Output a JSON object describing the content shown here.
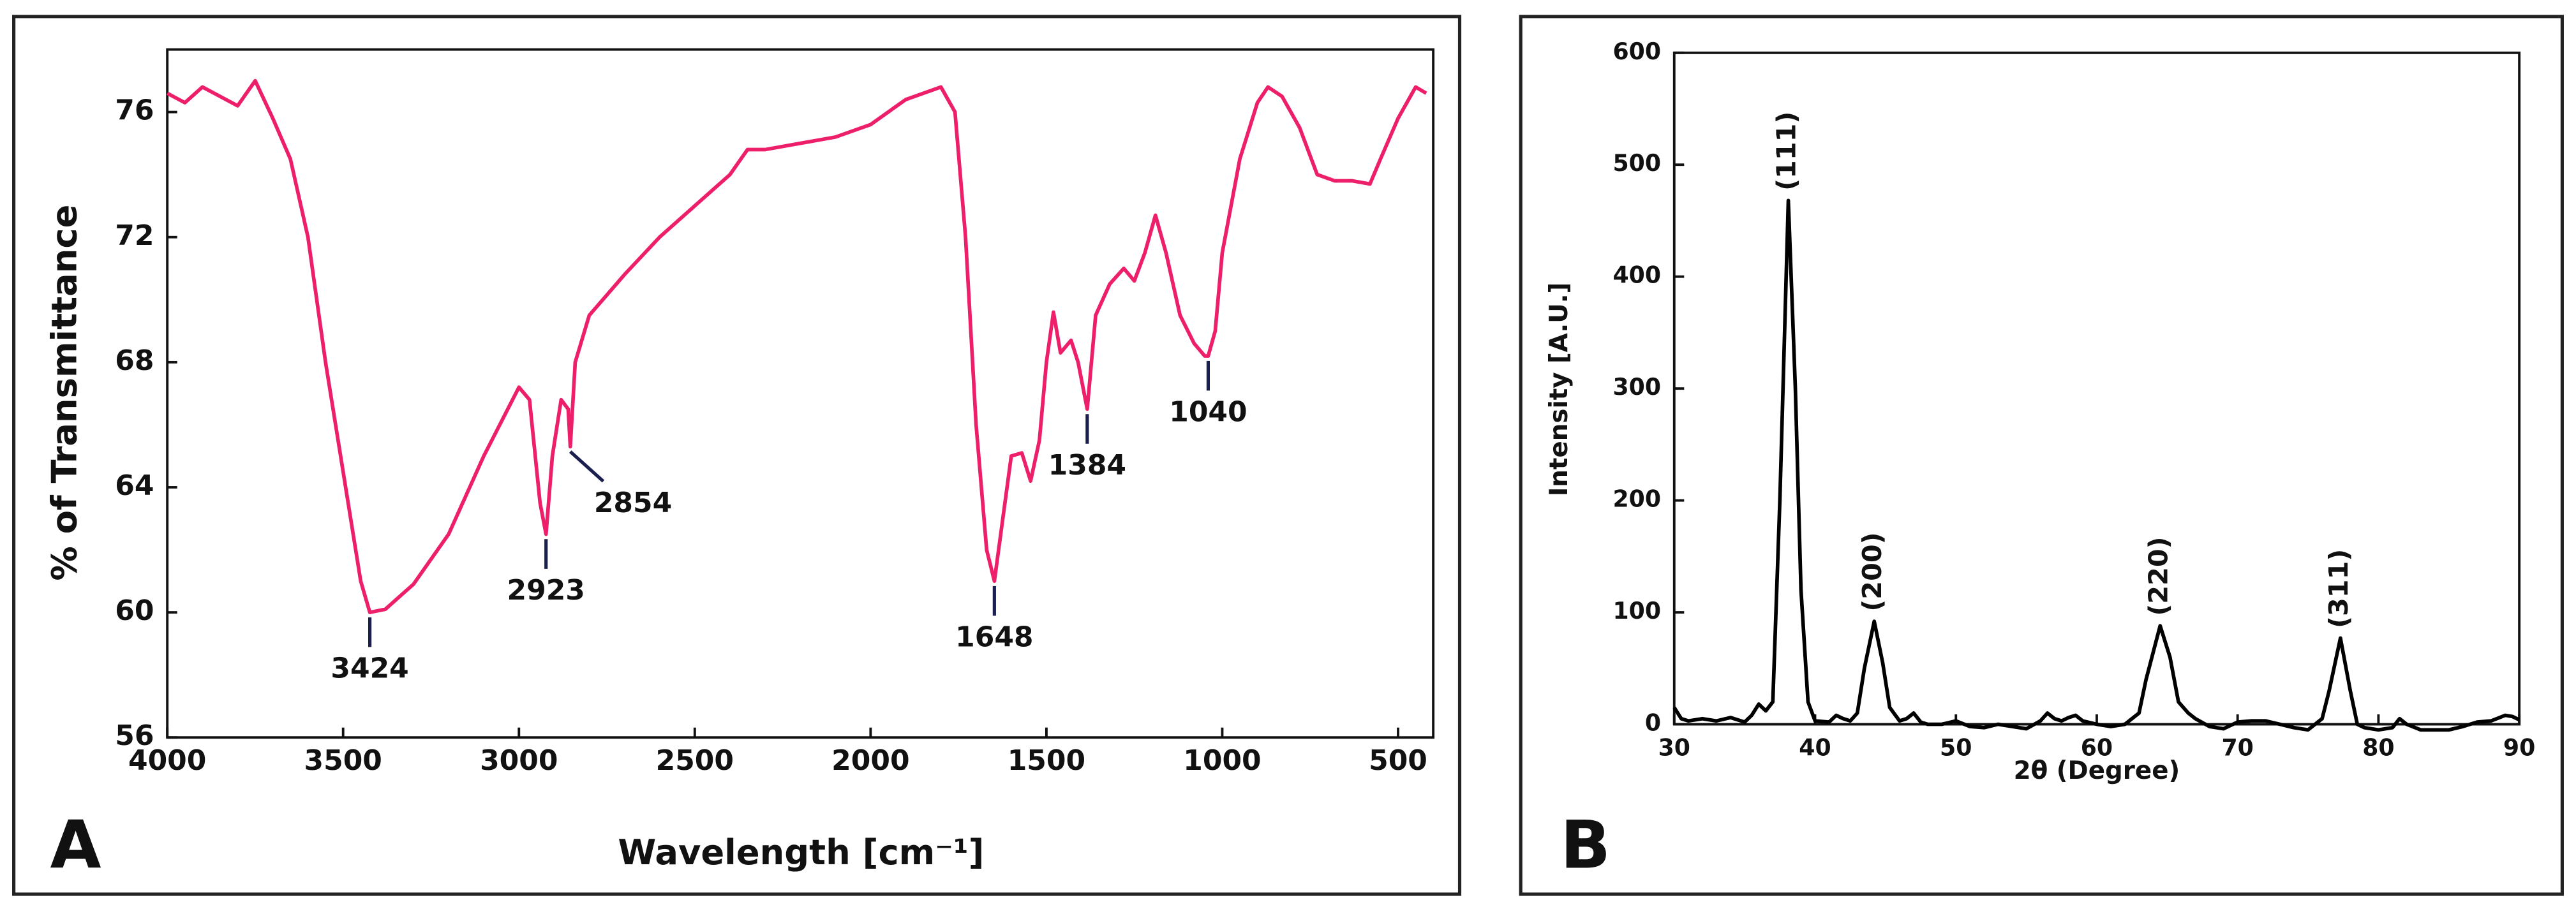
{
  "chart_data": [
    {
      "type": "line",
      "panel": "A",
      "x_label": "Wavelength [cm⁻¹]",
      "y_label": "% of Transmittance",
      "color": "#ee1f6a",
      "xlim": [
        4000,
        400
      ],
      "ylim": [
        56,
        78
      ],
      "xticks": [
        4000,
        3500,
        3000,
        2500,
        2000,
        1500,
        1000,
        500
      ],
      "yticks": [
        56,
        60,
        64,
        68,
        72,
        76
      ],
      "x": [
        4000,
        3950,
        3900,
        3850,
        3800,
        3750,
        3700,
        3650,
        3600,
        3550,
        3500,
        3450,
        3424,
        3380,
        3300,
        3200,
        3100,
        3000,
        2970,
        2940,
        2923,
        2905,
        2880,
        2860,
        2854,
        2840,
        2800,
        2700,
        2600,
        2500,
        2400,
        2350,
        2300,
        2200,
        2100,
        2000,
        1900,
        1800,
        1760,
        1730,
        1700,
        1670,
        1648,
        1630,
        1600,
        1570,
        1545,
        1520,
        1500,
        1480,
        1460,
        1430,
        1410,
        1384,
        1360,
        1320,
        1280,
        1250,
        1220,
        1190,
        1160,
        1120,
        1080,
        1050,
        1040,
        1020,
        1000,
        950,
        900,
        870,
        830,
        780,
        730,
        680,
        630,
        580,
        550,
        500,
        450,
        420
      ],
      "values": [
        76.6,
        76.3,
        76.8,
        76.5,
        76.2,
        77,
        75.8,
        74.5,
        72,
        68,
        64.5,
        61,
        60,
        60.1,
        60.9,
        62.5,
        65,
        67.2,
        66.8,
        63.5,
        62.5,
        65,
        66.8,
        66.5,
        65.3,
        68,
        69.5,
        70.8,
        72,
        73,
        74,
        74.8,
        74.8,
        75,
        75.2,
        75.6,
        76.4,
        76.8,
        76,
        72,
        66,
        62,
        61,
        62.5,
        65,
        65.1,
        64.2,
        65.5,
        68,
        69.6,
        68.3,
        68.7,
        68,
        66.5,
        69.5,
        70.5,
        71,
        70.6,
        71.5,
        72.7,
        71.5,
        69.5,
        68.6,
        68.2,
        68.2,
        69,
        71.5,
        74.5,
        76.3,
        76.8,
        76.5,
        75.5,
        74,
        73.8,
        73.8,
        73.7,
        74.5,
        75.8,
        76.8,
        76.6
      ],
      "peaks": [
        3424,
        2923,
        2854,
        1648,
        1384,
        1040
      ]
    },
    {
      "type": "line",
      "panel": "B",
      "x_label": "2θ (Degree)",
      "y_label": "Intensity [A.U.]",
      "color": "#000000",
      "xlim": [
        30,
        90
      ],
      "ylim": [
        0,
        600
      ],
      "xticks": [
        30,
        40,
        50,
        60,
        70,
        80,
        90
      ],
      "yticks": [
        0,
        100,
        200,
        300,
        400,
        500,
        600
      ],
      "x": [
        30,
        30.5,
        31,
        32,
        33,
        34,
        35,
        35.5,
        36,
        36.5,
        37,
        37.5,
        38.1,
        38.6,
        39,
        39.5,
        40,
        41,
        41.5,
        42,
        42.5,
        43,
        43.5,
        44.2,
        44.8,
        45.3,
        46,
        46.5,
        47,
        47.5,
        48,
        49,
        50,
        51,
        52,
        53,
        54,
        55,
        56,
        56.5,
        57,
        57.5,
        58,
        58.5,
        59,
        60,
        61,
        62,
        63,
        63.5,
        64.5,
        65.2,
        65.8,
        66.5,
        67,
        68,
        69,
        70,
        71,
        72,
        73,
        74,
        75,
        76,
        76.5,
        77.3,
        78,
        78.5,
        79,
        80,
        81,
        81.5,
        82,
        83,
        85,
        86,
        87,
        88,
        89,
        89.5,
        90
      ],
      "values": [
        15,
        5,
        3,
        5,
        3,
        6,
        2,
        8,
        18,
        12,
        20,
        200,
        468,
        300,
        120,
        20,
        3,
        2,
        8,
        5,
        3,
        10,
        50,
        92,
        55,
        15,
        3,
        5,
        10,
        2,
        0,
        0,
        3,
        -2,
        -3,
        0,
        -2,
        -4,
        3,
        10,
        5,
        3,
        6,
        8,
        3,
        0,
        -2,
        0,
        10,
        40,
        88,
        60,
        20,
        10,
        5,
        -2,
        -4,
        2,
        3,
        3,
        0,
        -3,
        -5,
        5,
        30,
        77,
        30,
        0,
        -3,
        -5,
        -3,
        5,
        0,
        -5,
        -5,
        -2,
        2,
        3,
        8,
        7,
        4
      ],
      "annotations": [
        {
          "x": 38.1,
          "label": "(111)"
        },
        {
          "x": 44.2,
          "label": "(200)"
        },
        {
          "x": 64.5,
          "label": "(220)"
        },
        {
          "x": 77.3,
          "label": "(311)"
        }
      ]
    }
  ]
}
